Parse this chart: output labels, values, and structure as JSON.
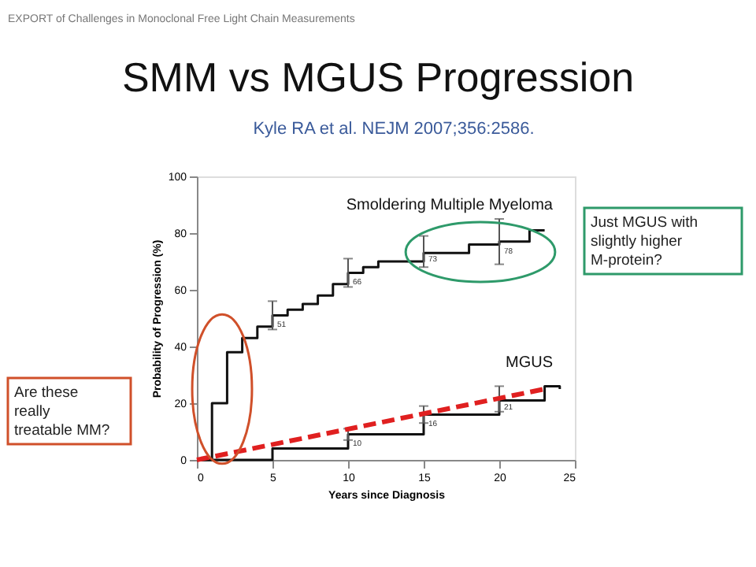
{
  "chart_data": {
    "type": "step",
    "title": "SMM vs MGUS Progression",
    "subtitle": "Kyle RA et al. NEJM 2007;356:2586.",
    "xlabel": "Years since Diagnosis",
    "ylabel": "Probability of Progression (%)",
    "xlim": [
      0,
      25
    ],
    "xticks": [
      0,
      5,
      10,
      15,
      20,
      25
    ],
    "ylim": [
      0,
      100
    ],
    "yticks": [
      0,
      20,
      40,
      60,
      80,
      100
    ],
    "grid": false,
    "marker": "none",
    "series": [
      {
        "name": "Smoldering Multiple Myeloma",
        "color": "#111111",
        "x": [
          0,
          1,
          2,
          3,
          4,
          5,
          6,
          7,
          8,
          9,
          10,
          11,
          12,
          15,
          18,
          20,
          22,
          23
        ],
        "values": [
          0,
          20,
          38,
          43,
          47,
          51,
          53,
          55,
          58,
          62,
          66,
          68,
          70,
          73,
          76,
          77,
          81,
          81
        ],
        "errors": [
          null,
          null,
          null,
          null,
          null,
          [
            46,
            56
          ],
          null,
          null,
          null,
          null,
          [
            61,
            71
          ],
          null,
          null,
          [
            68,
            79
          ],
          null,
          [
            69,
            85
          ],
          null,
          null
        ]
      },
      {
        "name": "MGUS",
        "color": "#111111",
        "x": [
          0,
          5,
          10,
          15,
          20,
          23,
          24
        ],
        "values": [
          0,
          4,
          9,
          16,
          21,
          26,
          25
        ],
        "errors": [
          null,
          null,
          [
            7,
            11
          ],
          [
            13,
            19
          ],
          [
            17,
            26
          ],
          null,
          null
        ]
      },
      {
        "type": "line",
        "color": "#e02020",
        "line_style": "dashed",
        "x": [
          0,
          23
        ],
        "values": [
          0,
          25
        ]
      }
    ],
    "annotations": [
      "EXPORT of Challenges in Monoclonal Free Light Chain Measurements",
      "Just MGUS with slightly higher M-protein?",
      "Are these really treatable MM?",
      {
        "text": "51",
        "x": 5,
        "y": 48
      },
      {
        "text": "66",
        "x": 10,
        "y": 63
      },
      {
        "text": "73",
        "x": 15,
        "y": 71
      },
      {
        "text": "78",
        "x": 20,
        "y": 74
      },
      {
        "text": "10",
        "x": 10,
        "y": 6
      },
      {
        "text": "16",
        "x": 15,
        "y": 13
      },
      {
        "text": "21",
        "x": 20,
        "y": 19
      }
    ]
  }
}
